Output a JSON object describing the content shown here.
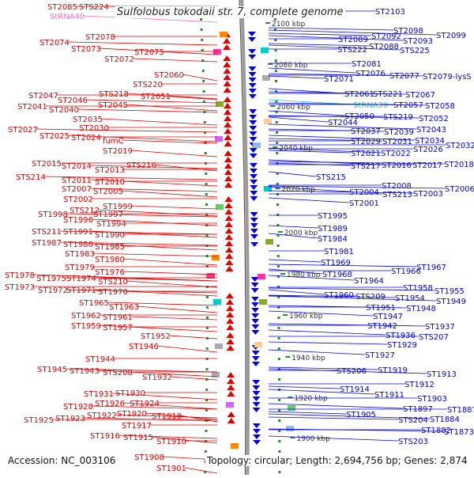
{
  "title": "Sulfolobus tokodaii str. 7, complete genome",
  "footer": {
    "accession": "Accession: NC_003106",
    "summary": "Topology: circular; Length: 2,694,756 bp; Genes: 2,874"
  },
  "colors": {
    "forward_gene": "#e00000",
    "reverse_gene": "#0000e0",
    "trna_label": "#ff6fc0",
    "trna_label_right": "#30c0e0",
    "backbone": "#888888",
    "tick": "#228822"
  },
  "ruler_labels": [
    {
      "text": "2100 kbp"
    },
    {
      "text": "2080 kbp"
    },
    {
      "text": "2060 kbp"
    },
    {
      "text": "2040 kbp"
    },
    {
      "text": "2020 kbp"
    },
    {
      "text": "2000 kbp"
    },
    {
      "text": "1980 kbp"
    },
    {
      "text": "1960 kbp"
    },
    {
      "text": "1940 kbp"
    },
    {
      "text": "1920 kbp"
    },
    {
      "text": "1900 kbp"
    }
  ],
  "left_labels": [
    "ST2085",
    "STS224",
    "StRNA40",
    "ST2078",
    "ST2074",
    "ST2073",
    "ST2075",
    "ST2072",
    "ST2060",
    "STS220",
    "ST2051",
    "STS218",
    "ST2047",
    "ST2046",
    "ST2045",
    "ST2041",
    "ST2040",
    "ST2035",
    "ST2030",
    "ST2027",
    "ST2025",
    "ST2024",
    "fumC",
    "ST2019",
    "ST2015",
    "ST2014",
    "STS216",
    "ST2013",
    "STS214",
    "ST2011",
    "ST2010",
    "ST2007",
    "ST2005",
    "ST2002",
    "ST1999",
    "STS212",
    "ST1997",
    "ST1998",
    "ST1996",
    "ST1994",
    "STS211",
    "ST1991",
    "ST1990",
    "ST1987",
    "ST1986",
    "ST1985",
    "ST1983",
    "ST1980",
    "ST1979",
    "ST1976",
    "ST1978",
    "ST1975",
    "ST1974",
    "STS210",
    "ST1973",
    "ST1972",
    "ST1971",
    "ST1970",
    "ST1965",
    "ST1963",
    "ST1962",
    "ST1961",
    "ST1959",
    "ST1957",
    "ST1952",
    "ST1946",
    "ST1944",
    "ST1945",
    "ST1943",
    "STS208",
    "ST1932",
    "ST1931",
    "ST1930",
    "ST1928",
    "ST1926",
    "ST1924",
    "ST1922",
    "ST1920",
    "ST1925",
    "ST1923",
    "ST1918",
    "ST1917",
    "ST1916",
    "ST1915",
    "ST1910",
    "ST1908",
    "ST1901"
  ],
  "right_labels": [
    "ST2103",
    "ST2098",
    "ST2099",
    "ST2089",
    "ST2092",
    "ST2093",
    "STS222",
    "ST2088",
    "STS225",
    "ST2081",
    "ST2071",
    "ST2076",
    "ST2077",
    "ST2079-lysS",
    "ST2061",
    "STS221",
    "ST2067",
    "StRNA39",
    "ST2057",
    "ST2058",
    "ST2050",
    "STS219",
    "ST2052",
    "ST2044",
    "ST2037",
    "ST2039",
    "ST2043",
    "ST2029",
    "ST2031",
    "ST2034",
    "ST2032",
    "ST2021",
    "ST2022",
    "ST2026",
    "STS217",
    "ST2016",
    "ST2017",
    "ST2018",
    "STS215",
    "ST2008",
    "ST2006",
    "ST2004",
    "STS213",
    "ST2003",
    "ST2001",
    "ST1995",
    "ST1989",
    "ST1984",
    "ST1981",
    "ST1969",
    "ST1968",
    "ST1966",
    "ST1967",
    "ST1964",
    "ST1958",
    "ST1955",
    "ST1960",
    "STS209",
    "ST1954",
    "ST1949",
    "ST1951",
    "ST1948",
    "ST1947",
    "ST1942",
    "ST1937",
    "ST1936",
    "STS207",
    "ST1929",
    "ST1927",
    "STS206",
    "ST1919",
    "ST1913",
    "ST1912",
    "ST1914",
    "ST1911",
    "ST1903",
    "ST1905",
    "ST1897",
    "ST1887",
    "STS204",
    "ST1884",
    "ST1882",
    "ST1873",
    "STS203"
  ]
}
